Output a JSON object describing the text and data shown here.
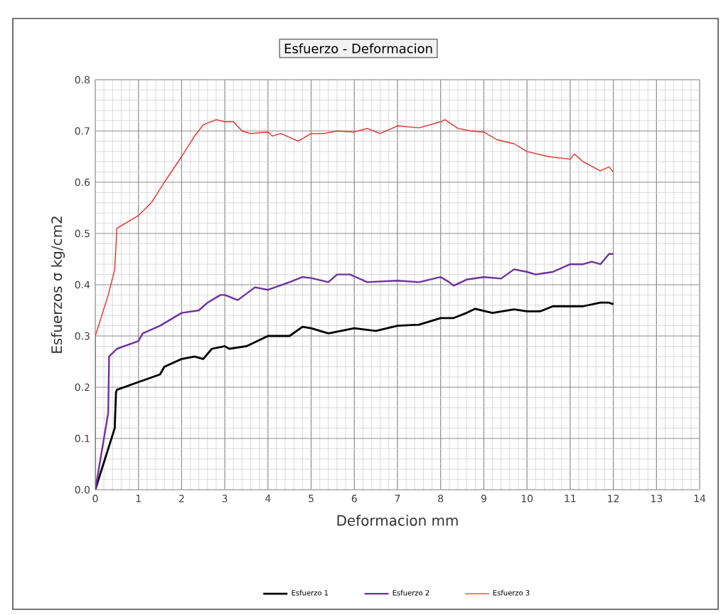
{
  "chart_data": {
    "type": "line",
    "title": "Esfuerzo - Deformacion",
    "xlabel": "Deformacion mm",
    "ylabel": "Esfuerzos σ kg/cm2",
    "xlim": [
      0,
      14
    ],
    "xticks": [
      0,
      1,
      2,
      3,
      4,
      5,
      6,
      7,
      8,
      9,
      10,
      11,
      12,
      13,
      14
    ],
    "ylim": [
      0,
      0.8
    ],
    "yticks": [
      {
        "value": 0,
        "label": "0.0"
      },
      0.1,
      0.2,
      0.3,
      0.4,
      0.5,
      0.6,
      0.7,
      0.8
    ],
    "grid": true,
    "legend": "bottom",
    "marker": "none",
    "line_style": "solid",
    "series": [
      {
        "name": "Esfuerzo 1",
        "color": "#000000",
        "x": [
          0,
          0.45,
          0.48,
          0.5,
          1,
          1.5,
          1.6,
          2,
          2.3,
          2.5,
          2.7,
          3,
          3.1,
          3.5,
          4,
          4.5,
          4.8,
          5,
          5.4,
          6,
          6.5,
          7,
          7.5,
          8,
          8.3,
          8.6,
          8.8,
          9.2,
          9.7,
          10,
          10.3,
          10.6,
          11,
          11.3,
          11.7,
          11.9,
          12
        ],
        "values": [
          0,
          0.12,
          0.19,
          0.195,
          0.21,
          0.225,
          0.24,
          0.255,
          0.26,
          0.255,
          0.275,
          0.28,
          0.275,
          0.28,
          0.3,
          0.3,
          0.318,
          0.315,
          0.305,
          0.315,
          0.31,
          0.32,
          0.322,
          0.335,
          0.335,
          0.345,
          0.353,
          0.345,
          0.352,
          0.348,
          0.348,
          0.358,
          0.358,
          0.358,
          0.365,
          0.365,
          0.362
        ]
      },
      {
        "name": "Esfuerzo 2",
        "color": "#7030a0",
        "x": [
          0,
          0.3,
          0.32,
          0.5,
          1,
          1.1,
          1.5,
          2,
          2.4,
          2.6,
          2.9,
          3,
          3.3,
          3.7,
          4,
          4.5,
          4.8,
          5,
          5.4,
          5.6,
          5.9,
          6.3,
          7,
          7.5,
          8,
          8.2,
          8.3,
          8.6,
          9,
          9.4,
          9.7,
          10,
          10.2,
          10.6,
          11,
          11.3,
          11.5,
          11.7,
          11.9,
          12
        ],
        "values": [
          0,
          0.15,
          0.26,
          0.275,
          0.29,
          0.305,
          0.32,
          0.345,
          0.35,
          0.365,
          0.38,
          0.38,
          0.37,
          0.395,
          0.39,
          0.405,
          0.415,
          0.413,
          0.405,
          0.42,
          0.42,
          0.405,
          0.408,
          0.405,
          0.415,
          0.405,
          0.398,
          0.41,
          0.415,
          0.412,
          0.43,
          0.425,
          0.42,
          0.425,
          0.44,
          0.44,
          0.445,
          0.44,
          0.46,
          0.46
        ]
      },
      {
        "name": "Esfuerzo 3",
        "color": "#e0302a",
        "x": [
          0,
          0,
          0.3,
          0.45,
          0.5,
          0.7,
          1,
          1.3,
          1.6,
          2,
          2.3,
          2.5,
          2.8,
          3,
          3.2,
          3.4,
          3.6,
          4,
          4.1,
          4.3,
          4.7,
          5,
          5.3,
          5.6,
          6,
          6.3,
          6.6,
          7,
          7.5,
          8,
          8.1,
          8.4,
          8.7,
          9,
          9.3,
          9.7,
          10,
          10.5,
          11,
          11.1,
          11.3,
          11.7,
          11.9,
          12
        ],
        "values": [
          0,
          0.3,
          0.38,
          0.43,
          0.51,
          0.52,
          0.535,
          0.56,
          0.6,
          0.65,
          0.69,
          0.712,
          0.722,
          0.718,
          0.718,
          0.7,
          0.695,
          0.698,
          0.69,
          0.695,
          0.68,
          0.695,
          0.695,
          0.7,
          0.698,
          0.705,
          0.695,
          0.71,
          0.706,
          0.718,
          0.722,
          0.705,
          0.7,
          0.698,
          0.683,
          0.675,
          0.66,
          0.65,
          0.645,
          0.655,
          0.64,
          0.622,
          0.63,
          0.62
        ]
      }
    ]
  }
}
